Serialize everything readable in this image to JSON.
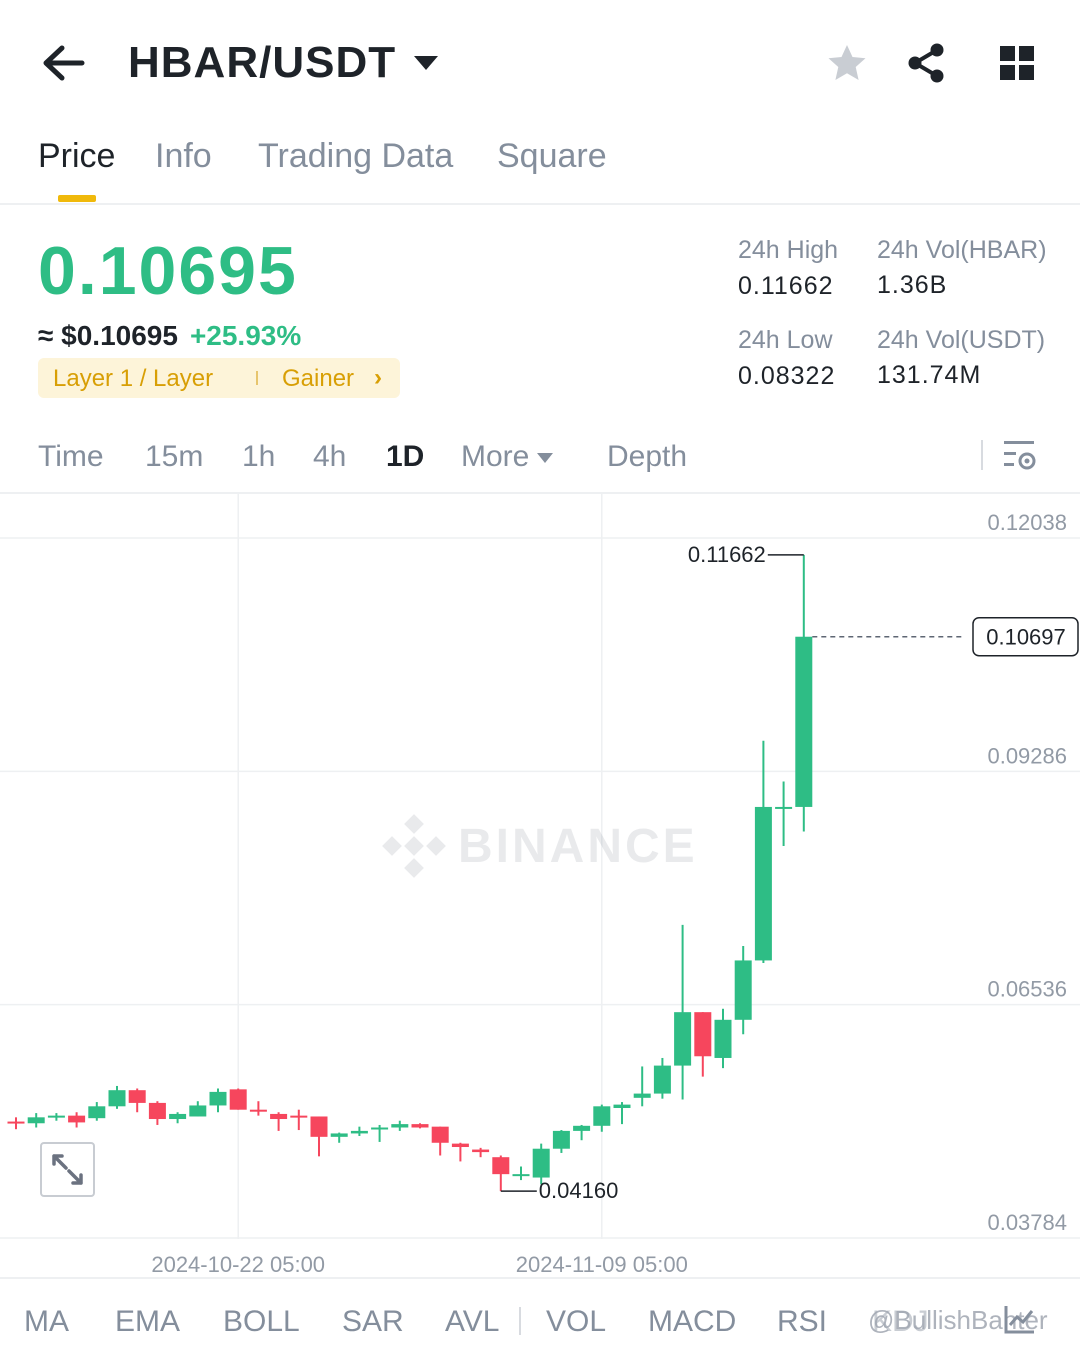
{
  "header": {
    "pair": "HBAR/USDT",
    "icons": [
      "back-arrow-icon",
      "caret-down-icon",
      "star-icon",
      "share-icon",
      "grid-icon"
    ]
  },
  "tabs": [
    {
      "label": "Price",
      "active": true
    },
    {
      "label": "Info",
      "active": false
    },
    {
      "label": "Trading Data",
      "active": false
    },
    {
      "label": "Square",
      "active": false
    }
  ],
  "ticker": {
    "last_price": "0.10695",
    "approx_usd": "≈ $0.10695",
    "change_pct": "+25.93%",
    "tag_category": "Layer 1 / Layer",
    "tag_gainer": "Gainer",
    "high_label": "24h High",
    "high_value": "0.11662",
    "low_label": "24h Low",
    "low_value": "0.08322",
    "vol_base_label": "24h Vol(HBAR)",
    "vol_base_value": "1.36B",
    "vol_quote_label": "24h Vol(USDT)",
    "vol_quote_value": "131.74M"
  },
  "timeframes": {
    "items": [
      "Time",
      "15m",
      "1h",
      "4h",
      "1D"
    ],
    "active": "1D",
    "more": "More",
    "depth": "Depth"
  },
  "chart_data": {
    "type": "candlestick",
    "interval": "1D",
    "watermark": "BINANCE",
    "y_ticks": [
      "0.12038",
      "0.09286",
      "0.06536",
      "0.03784"
    ],
    "x_ticks": [
      "2024-10-22 05:00",
      "2024-11-09 05:00"
    ],
    "max_label": "0.11662",
    "min_label": "0.04160",
    "current_price_label": "0.10697",
    "ylim": [
      0.03784,
      0.12038
    ],
    "grid": true,
    "candles": [
      {
        "o": 0.0498,
        "h": 0.0503,
        "l": 0.0489,
        "c": 0.0496
      },
      {
        "o": 0.0496,
        "h": 0.0508,
        "l": 0.0491,
        "c": 0.0503
      },
      {
        "o": 0.0503,
        "h": 0.0508,
        "l": 0.0499,
        "c": 0.0505
      },
      {
        "o": 0.0505,
        "h": 0.0509,
        "l": 0.0491,
        "c": 0.0497
      },
      {
        "o": 0.0502,
        "h": 0.0521,
        "l": 0.0499,
        "c": 0.0516
      },
      {
        "o": 0.0516,
        "h": 0.054,
        "l": 0.0513,
        "c": 0.0535
      },
      {
        "o": 0.0535,
        "h": 0.0537,
        "l": 0.0509,
        "c": 0.052
      },
      {
        "o": 0.052,
        "h": 0.0522,
        "l": 0.0494,
        "c": 0.0501
      },
      {
        "o": 0.0501,
        "h": 0.0509,
        "l": 0.0496,
        "c": 0.0507
      },
      {
        "o": 0.0504,
        "h": 0.0522,
        "l": 0.0504,
        "c": 0.0517
      },
      {
        "o": 0.0517,
        "h": 0.0537,
        "l": 0.0509,
        "c": 0.0533
      },
      {
        "o": 0.0536,
        "h": 0.0537,
        "l": 0.0512,
        "c": 0.0512
      },
      {
        "o": 0.0512,
        "h": 0.0522,
        "l": 0.0505,
        "c": 0.0511
      },
      {
        "o": 0.0507,
        "h": 0.0509,
        "l": 0.0487,
        "c": 0.0501
      },
      {
        "o": 0.0505,
        "h": 0.0512,
        "l": 0.0488,
        "c": 0.0504
      },
      {
        "o": 0.0504,
        "h": 0.0504,
        "l": 0.0457,
        "c": 0.048
      },
      {
        "o": 0.048,
        "h": 0.0485,
        "l": 0.0473,
        "c": 0.0484
      },
      {
        "o": 0.0484,
        "h": 0.0492,
        "l": 0.0481,
        "c": 0.0487
      },
      {
        "o": 0.0491,
        "h": 0.0494,
        "l": 0.0474,
        "c": 0.0491
      },
      {
        "o": 0.0491,
        "h": 0.0499,
        "l": 0.0487,
        "c": 0.0495
      },
      {
        "o": 0.0495,
        "h": 0.0496,
        "l": 0.049,
        "c": 0.0491
      },
      {
        "o": 0.0492,
        "h": 0.0492,
        "l": 0.0458,
        "c": 0.0473
      },
      {
        "o": 0.0472,
        "h": 0.0473,
        "l": 0.0451,
        "c": 0.0468
      },
      {
        "o": 0.0465,
        "h": 0.0467,
        "l": 0.0456,
        "c": 0.0462
      },
      {
        "o": 0.0456,
        "h": 0.0458,
        "l": 0.0416,
        "c": 0.0436
      },
      {
        "o": 0.0436,
        "h": 0.0445,
        "l": 0.0429,
        "c": 0.0436
      },
      {
        "o": 0.0432,
        "h": 0.0472,
        "l": 0.0424,
        "c": 0.0466
      },
      {
        "o": 0.0466,
        "h": 0.0488,
        "l": 0.0461,
        "c": 0.0487
      },
      {
        "o": 0.0487,
        "h": 0.0494,
        "l": 0.0476,
        "c": 0.0493
      },
      {
        "o": 0.0493,
        "h": 0.0518,
        "l": 0.0486,
        "c": 0.0516
      },
      {
        "o": 0.0514,
        "h": 0.0521,
        "l": 0.0495,
        "c": 0.0518
      },
      {
        "o": 0.0526,
        "h": 0.0563,
        "l": 0.0516,
        "c": 0.0531
      },
      {
        "o": 0.0531,
        "h": 0.0573,
        "l": 0.0525,
        "c": 0.0564
      },
      {
        "o": 0.0564,
        "h": 0.073,
        "l": 0.0524,
        "c": 0.0627
      },
      {
        "o": 0.0627,
        "h": 0.0627,
        "l": 0.0551,
        "c": 0.0575
      },
      {
        "o": 0.0573,
        "h": 0.0631,
        "l": 0.0561,
        "c": 0.0618
      },
      {
        "o": 0.0618,
        "h": 0.0705,
        "l": 0.0601,
        "c": 0.0688
      },
      {
        "o": 0.0688,
        "h": 0.0947,
        "l": 0.0685,
        "c": 0.0869
      },
      {
        "o": 0.0869,
        "h": 0.0899,
        "l": 0.0823,
        "c": 0.0869
      },
      {
        "o": 0.0869,
        "h": 0.11662,
        "l": 0.084,
        "c": 0.10697
      }
    ]
  },
  "indicators": {
    "main": [
      "MA",
      "EMA",
      "BOLL",
      "SAR",
      "AVL"
    ],
    "sub": [
      "VOL",
      "MACD",
      "RSI",
      "KDJ"
    ],
    "watermark_user": "@BullishBanter"
  }
}
